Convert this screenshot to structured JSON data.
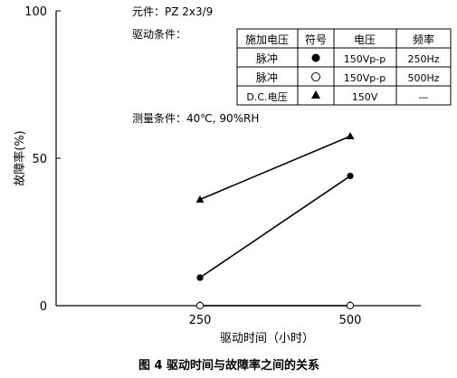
{
  "chart_data": {
    "type": "line",
    "title": "图 4 驱动时间与故障率之间的关系",
    "xlabel": "驱动时间（小时）",
    "ylabel": "故障率(%)",
    "x_ticks": [
      "250",
      "500"
    ],
    "y_ticks": [
      "0",
      "50",
      "100"
    ],
    "xlim": [
      0,
      600
    ],
    "ylim": [
      0,
      100
    ],
    "grid": false,
    "annotations": {
      "element": "元件：PZ 2x3/9",
      "drive_conditions": "驱动条件：",
      "measure_conditions": "测量条件：40℃, 90%RH"
    },
    "legend_table": {
      "headers": [
        "施加电压",
        "符号",
        "电压",
        "频率"
      ],
      "rows": [
        {
          "type": "脉冲",
          "marker": "filled-circle",
          "voltage": "150Vp-p",
          "frequency": "250Hz"
        },
        {
          "type": "脉冲",
          "marker": "open-circle",
          "voltage": "150Vp-p",
          "frequency": "500Hz"
        },
        {
          "type": "D.C.电压",
          "marker": "filled-triangle",
          "voltage": "150V",
          "frequency": "—"
        }
      ]
    },
    "series": [
      {
        "marker": "filled-triangle",
        "x": [
          250,
          500
        ],
        "y": [
          36,
          57.5
        ]
      },
      {
        "marker": "filled-circle",
        "x": [
          250,
          500
        ],
        "y": [
          9.5,
          44
        ]
      },
      {
        "marker": "open-circle",
        "x": [
          250,
          500
        ],
        "y": [
          0,
          0
        ]
      }
    ]
  }
}
